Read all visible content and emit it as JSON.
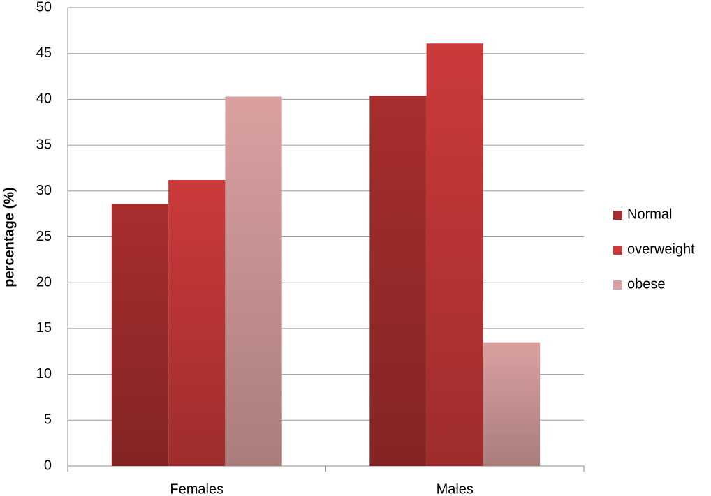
{
  "chart_data": {
    "type": "bar",
    "y_label": "percentage (%)",
    "categories": [
      "Females",
      "Males"
    ],
    "series": [
      {
        "name": "Normal",
        "color": "#a82e2e",
        "values": [
          28.6,
          40.4
        ]
      },
      {
        "name": "overweight",
        "color": "#cc3a3a",
        "values": [
          31.2,
          46.1
        ]
      },
      {
        "name": "obese",
        "color": "#daa0a0",
        "values": [
          40.3,
          13.5
        ]
      }
    ],
    "ylim": [
      0,
      50
    ],
    "yticks": [
      0,
      5,
      10,
      15,
      20,
      25,
      30,
      35,
      40,
      45,
      50
    ],
    "grid": true,
    "legend": "right"
  }
}
